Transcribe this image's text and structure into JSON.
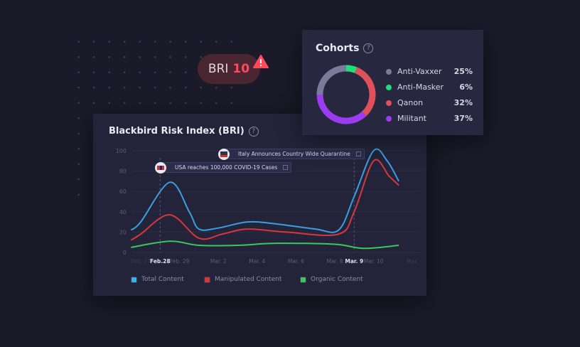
{
  "bri": {
    "label": "BRI",
    "value": "10",
    "warning_icon": "warning-triangle-icon"
  },
  "cohorts": {
    "title": "Cohorts",
    "items": [
      {
        "name": "Anti-Vaxxer",
        "pct": "25%",
        "value": 25,
        "color": "#7a7b9a"
      },
      {
        "name": "Anti-Masker",
        "pct": "6%",
        "value": 6,
        "color": "#1ee07a"
      },
      {
        "name": "Qanon",
        "pct": "32%",
        "value": 32,
        "color": "#e0505a"
      },
      {
        "name": "Militant",
        "pct": "37%",
        "value": 37,
        "color": "#9b3cf0"
      }
    ]
  },
  "chart_data": {
    "type": "line",
    "title": "Blackbird Risk Index (BRI)",
    "ylim": [
      0,
      100
    ],
    "yticks": [
      "0",
      "20",
      "40",
      "60",
      "80",
      "100"
    ],
    "xticks": [
      {
        "label": "Feb. 27",
        "day": 0,
        "style": "faded"
      },
      {
        "label": "Feb.28",
        "day": 1,
        "style": "bold"
      },
      {
        "label": "Feb. 29",
        "day": 2,
        "style": "normal"
      },
      {
        "label": "Mar. 2",
        "day": 4,
        "style": "normal"
      },
      {
        "label": "Mar. 4",
        "day": 6,
        "style": "normal"
      },
      {
        "label": "Mar. 6",
        "day": 8,
        "style": "normal"
      },
      {
        "label": "Mar. 8",
        "day": 10,
        "style": "normal"
      },
      {
        "label": "Mar. 9",
        "day": 11,
        "style": "bold"
      },
      {
        "label": "Mar. 10",
        "day": 12,
        "style": "normal"
      },
      {
        "label": "Mar.",
        "day": 14,
        "style": "faded"
      }
    ],
    "series": [
      {
        "name": "Total Content",
        "color": "#3a9ee0",
        "points": [
          [
            -0.5,
            22
          ],
          [
            0,
            30
          ],
          [
            1.5,
            69
          ],
          [
            2.5,
            40
          ],
          [
            3,
            23
          ],
          [
            4,
            24
          ],
          [
            5.5,
            30
          ],
          [
            7,
            28
          ],
          [
            9,
            23
          ],
          [
            10.2,
            22
          ],
          [
            11,
            55
          ],
          [
            12,
            100
          ],
          [
            12.7,
            90
          ],
          [
            13.3,
            70
          ]
        ]
      },
      {
        "name": "Manipulated Content",
        "color": "#d8363e",
        "points": [
          [
            -0.5,
            12
          ],
          [
            0,
            18
          ],
          [
            1.5,
            37
          ],
          [
            3,
            14
          ],
          [
            4.2,
            18
          ],
          [
            5.5,
            23
          ],
          [
            7.5,
            20
          ],
          [
            10.2,
            18
          ],
          [
            11,
            40
          ],
          [
            12,
            90
          ],
          [
            12.8,
            75
          ],
          [
            13.3,
            66
          ]
        ]
      },
      {
        "name": "Organic Content",
        "color": "#3cc85a",
        "points": [
          [
            -0.5,
            5
          ],
          [
            1.5,
            11
          ],
          [
            3,
            7
          ],
          [
            5,
            7
          ],
          [
            7,
            9
          ],
          [
            10,
            8
          ],
          [
            11.5,
            4
          ],
          [
            13.3,
            7
          ]
        ]
      }
    ],
    "annotations": [
      {
        "text": "Italy Announces Country Wide Quarantine",
        "day": 11
      },
      {
        "text": "USA reaches 100,000 COVID-19 Cases",
        "day": 1
      }
    ],
    "legend": "bottom"
  }
}
